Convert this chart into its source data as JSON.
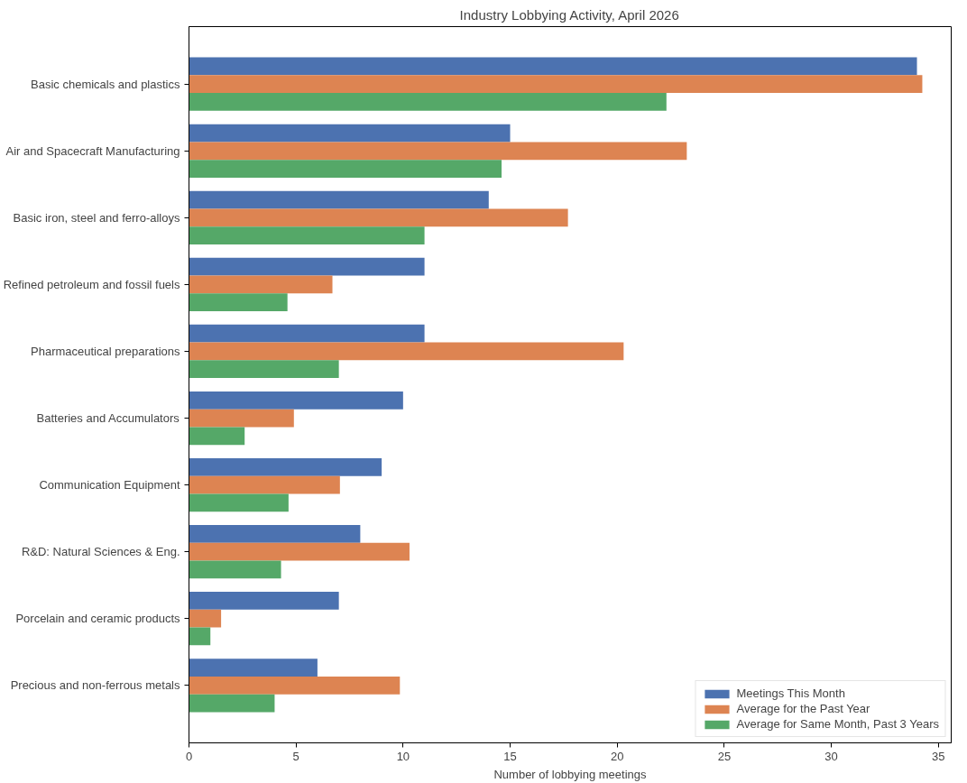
{
  "chart_data": {
    "type": "bar",
    "orientation": "horizontal",
    "title": "Industry Lobbying Activity, April 2026",
    "xlabel": "Number of lobbying meetings",
    "categories": [
      "Basic chemicals and plastics",
      "Air and Spacecraft Manufacturing",
      "Basic iron, steel and ferro-alloys",
      "Refined petroleum and fossil fuels",
      "Pharmaceutical preparations",
      "Batteries and Accumulators",
      "Communication Equipment",
      "R&D: Natural Sciences & Eng.",
      "Porcelain and ceramic products",
      "Precious and non-ferrous metals"
    ],
    "series": [
      {
        "name": "Meetings This Month",
        "color": "#4c72b0",
        "values": [
          34,
          15,
          14,
          11,
          11,
          10,
          9,
          8,
          7,
          6
        ]
      },
      {
        "name": "Average for the Past Year",
        "color": "#dd8452",
        "values": [
          34.25,
          23.25,
          17.7,
          6.7,
          20.3,
          4.9,
          7.05,
          10.3,
          1.5,
          9.85
        ]
      },
      {
        "name": "Average for Same Month, Past 3 Years",
        "color": "#55a868",
        "values": [
          22.3,
          14.6,
          11,
          4.6,
          7,
          2.6,
          4.65,
          4.3,
          1,
          4
        ]
      }
    ],
    "xlim": [
      0,
      35.6
    ],
    "xticks": [
      0,
      5,
      10,
      15,
      20,
      25,
      30,
      35
    ],
    "grid": false,
    "legend": "bottom right"
  }
}
